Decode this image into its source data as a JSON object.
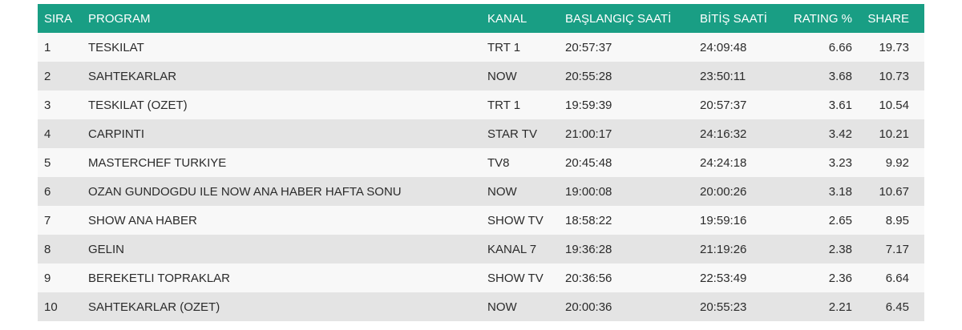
{
  "table": {
    "headers": [
      "SIRA",
      "PROGRAM",
      "KANAL",
      "BAŞLANGIÇ SAATİ",
      "BİTİŞ SAATİ",
      "RATING %",
      "SHARE"
    ],
    "rows": [
      [
        1,
        "TESKILAT",
        "TRT 1",
        "20:57:37",
        "24:09:48",
        6.66,
        19.73
      ],
      [
        2,
        "SAHTEKARLAR",
        "NOW",
        "20:55:28",
        "23:50:11",
        3.68,
        10.73
      ],
      [
        3,
        "TESKILAT (OZET)",
        "TRT 1",
        "19:59:39",
        "20:57:37",
        3.61,
        10.54
      ],
      [
        4,
        "CARPINTI",
        "STAR TV",
        "21:00:17",
        "24:16:32",
        3.42,
        10.21
      ],
      [
        5,
        "MASTERCHEF TURKIYE",
        "TV8",
        "20:45:48",
        "24:24:18",
        3.23,
        9.92
      ],
      [
        6,
        "OZAN GUNDOGDU ILE NOW ANA HABER HAFTA SONU",
        "NOW",
        "19:00:08",
        "20:00:26",
        3.18,
        10.67
      ],
      [
        7,
        "SHOW ANA HABER",
        "SHOW TV",
        "18:58:22",
        "19:59:16",
        2.65,
        8.95
      ],
      [
        8,
        "GELIN",
        "KANAL 7",
        "19:36:28",
        "21:19:26",
        2.38,
        7.17
      ],
      [
        9,
        "BEREKETLI TOPRAKLAR",
        "SHOW TV",
        "20:36:56",
        "22:53:49",
        2.36,
        6.64
      ],
      [
        10,
        "SAHTEKARLAR (OZET)",
        "NOW",
        "20:00:36",
        "20:55:23",
        2.21,
        6.45
      ]
    ]
  }
}
